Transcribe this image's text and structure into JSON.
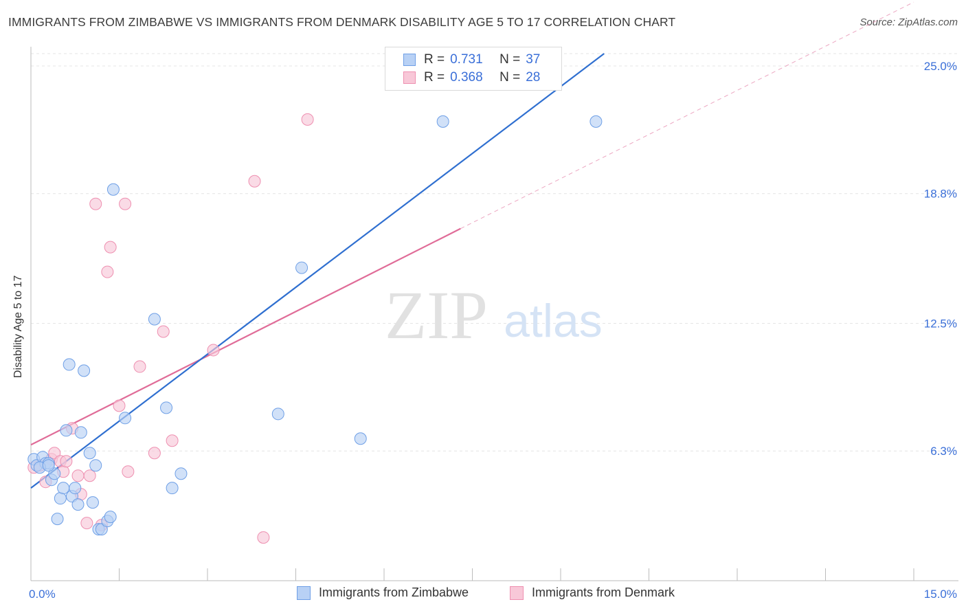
{
  "title": "IMMIGRANTS FROM ZIMBABWE VS IMMIGRANTS FROM DENMARK DISABILITY AGE 5 TO 17 CORRELATION CHART",
  "source": "Source: ZipAtlas.com",
  "watermark": {
    "zip": "ZIP",
    "atlas": "atlas"
  },
  "legend": {
    "r_label": "R =",
    "n_label": "N =",
    "series": [
      {
        "r": "0.731",
        "n": "37"
      },
      {
        "r": "0.368",
        "n": "28"
      }
    ]
  },
  "colors": {
    "zimbabwe_fill": "#b8d1f5",
    "zimbabwe_stroke": "#6e9fe6",
    "zimbabwe_line": "#2f6fd0",
    "denmark_fill": "#f8c8d8",
    "denmark_stroke": "#ee8fb0",
    "denmark_line": "#e06c98",
    "value_text": "#3a6fd8"
  },
  "chart_data": {
    "type": "scatter",
    "xlabel": "",
    "ylabel": "Disability Age 5 to 17",
    "xlim": [
      0,
      15
    ],
    "ylim": [
      0,
      25.6
    ],
    "x_tick_labels": [
      "0.0%",
      "15.0%"
    ],
    "y_ticks": [
      6.3,
      12.5,
      18.8,
      25.0
    ],
    "y_tick_labels": [
      "6.3%",
      "12.5%",
      "18.8%",
      "25.0%"
    ],
    "series": [
      {
        "name": "Immigrants from Zimbabwe",
        "r": 0.731,
        "n": 37,
        "trend": {
          "x0": 0.0,
          "y0": 4.5,
          "x1": 15.0,
          "y1": 37.0
        },
        "points": [
          [
            0.05,
            5.9
          ],
          [
            0.1,
            5.6
          ],
          [
            0.2,
            6.0
          ],
          [
            0.25,
            5.7
          ],
          [
            0.3,
            5.7
          ],
          [
            0.35,
            4.9
          ],
          [
            0.4,
            5.2
          ],
          [
            0.5,
            4.0
          ],
          [
            0.45,
            3.0
          ],
          [
            0.55,
            4.5
          ],
          [
            0.6,
            7.3
          ],
          [
            0.65,
            10.5
          ],
          [
            0.7,
            4.1
          ],
          [
            0.75,
            4.5
          ],
          [
            0.8,
            3.7
          ],
          [
            0.85,
            7.2
          ],
          [
            0.9,
            10.2
          ],
          [
            1.0,
            6.2
          ],
          [
            1.05,
            3.8
          ],
          [
            1.1,
            5.6
          ],
          [
            1.15,
            2.5
          ],
          [
            1.2,
            2.5
          ],
          [
            1.3,
            2.9
          ],
          [
            1.35,
            3.1
          ],
          [
            1.4,
            19.0
          ],
          [
            1.6,
            7.9
          ],
          [
            2.1,
            12.7
          ],
          [
            2.3,
            8.4
          ],
          [
            2.4,
            4.5
          ],
          [
            2.55,
            5.2
          ],
          [
            4.2,
            8.1
          ],
          [
            4.6,
            15.2
          ],
          [
            5.6,
            6.9
          ],
          [
            7.0,
            22.3
          ],
          [
            9.6,
            22.3
          ],
          [
            0.15,
            5.5
          ],
          [
            0.3,
            5.6
          ]
        ]
      },
      {
        "name": "Immigrants from Denmark",
        "r": 0.368,
        "n": 28,
        "trend": {
          "x0": 0.0,
          "y0": 6.6,
          "x1": 7.3,
          "y1": 17.1,
          "ext_x1": 15.0,
          "ext_y1": 28.1
        },
        "points": [
          [
            0.05,
            5.5
          ],
          [
            0.15,
            5.6
          ],
          [
            0.25,
            4.8
          ],
          [
            0.35,
            5.9
          ],
          [
            0.4,
            6.2
          ],
          [
            0.5,
            5.8
          ],
          [
            0.55,
            5.3
          ],
          [
            0.6,
            5.8
          ],
          [
            0.7,
            7.4
          ],
          [
            0.8,
            5.1
          ],
          [
            0.85,
            4.2
          ],
          [
            0.95,
            2.8
          ],
          [
            1.0,
            5.1
          ],
          [
            1.1,
            18.3
          ],
          [
            1.2,
            2.7
          ],
          [
            1.3,
            15.0
          ],
          [
            1.35,
            16.2
          ],
          [
            1.5,
            8.5
          ],
          [
            1.6,
            18.3
          ],
          [
            1.65,
            5.3
          ],
          [
            1.85,
            10.4
          ],
          [
            2.1,
            6.2
          ],
          [
            2.25,
            12.1
          ],
          [
            2.4,
            6.8
          ],
          [
            3.1,
            11.2
          ],
          [
            3.8,
            19.4
          ],
          [
            3.95,
            2.1
          ],
          [
            4.7,
            22.4
          ]
        ]
      }
    ],
    "legend_position": "top-center",
    "grid": true
  }
}
